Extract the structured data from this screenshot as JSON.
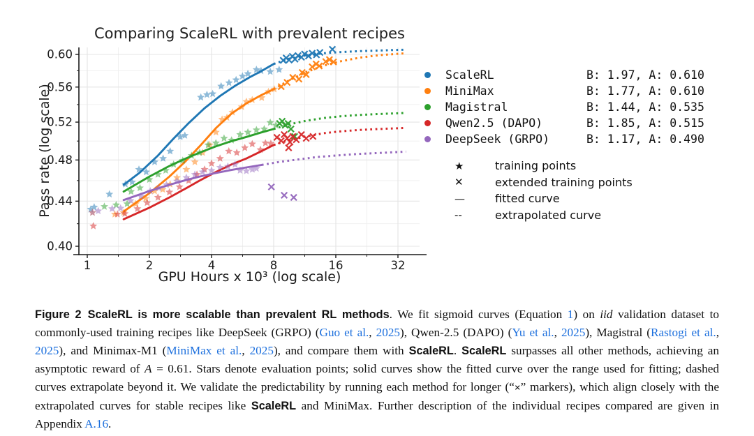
{
  "chart_data": {
    "type": "scatter+line",
    "title": "Comparing ScaleRL with prevalent recipes",
    "xlabel": "GPU Hours x 10³ (log scale)",
    "ylabel": "Pass rate (log scale)",
    "x_scale": "log2",
    "y_scale": "log",
    "x_ticks": [
      1,
      2,
      4,
      8,
      16,
      32
    ],
    "y_ticks": [
      0.4,
      0.44,
      0.48,
      0.52,
      0.56,
      0.6
    ],
    "xlim": [
      0.91,
      40
    ],
    "ylim": [
      0.393,
      0.609
    ],
    "grid": true,
    "legend_position": "right",
    "marker_legend": [
      {
        "symbol": "★",
        "label": "training points"
      },
      {
        "symbol": "✕",
        "label": "extended training points"
      },
      {
        "symbol": "—",
        "label": "fitted curve"
      },
      {
        "symbol": "--",
        "label": "extrapolated curve"
      }
    ],
    "series": [
      {
        "name": "ScaleRL",
        "color": "#1f77b4",
        "B": 1.97,
        "A": 0.61,
        "fit_label": "B: 1.97, A: 0.610",
        "solid_until": 8,
        "curve": [
          [
            1.5,
            0.4555
          ],
          [
            1.8,
            0.4675
          ],
          [
            2.2,
            0.4845
          ],
          [
            2.6,
            0.5015
          ],
          [
            3.1,
            0.519
          ],
          [
            3.7,
            0.5355
          ],
          [
            4.4,
            0.5495
          ],
          [
            5.2,
            0.5615
          ],
          [
            6.2,
            0.5725
          ],
          [
            7.0,
            0.5795
          ],
          [
            8.0,
            0.588
          ],
          [
            9.5,
            0.5945
          ],
          [
            11.5,
            0.599
          ],
          [
            14,
            0.6015
          ],
          [
            17,
            0.603
          ],
          [
            21,
            0.6042
          ],
          [
            26,
            0.605
          ],
          [
            31,
            0.6057
          ],
          [
            35,
            0.606
          ]
        ],
        "stars": [
          [
            1.04,
            0.4325
          ],
          [
            1.08,
            0.4345
          ],
          [
            1.28,
            0.4465
          ],
          [
            1.53,
            0.456
          ],
          [
            1.65,
            0.458
          ],
          [
            1.78,
            0.4705
          ],
          [
            1.93,
            0.468
          ],
          [
            2.12,
            0.478
          ],
          [
            2.33,
            0.4815
          ],
          [
            2.52,
            0.489
          ],
          [
            2.82,
            0.504
          ],
          [
            2.97,
            0.5055
          ],
          [
            3.55,
            0.548
          ],
          [
            3.8,
            0.551
          ],
          [
            4.05,
            0.552
          ],
          [
            4.45,
            0.561
          ],
          [
            4.86,
            0.565
          ],
          [
            5.26,
            0.5685
          ],
          [
            5.65,
            0.573
          ],
          [
            6.0,
            0.576
          ],
          [
            6.6,
            0.581
          ],
          [
            6.95,
            0.5795
          ],
          [
            7.7,
            0.5785
          ],
          [
            8.5,
            0.581
          ]
        ],
        "crosses": [
          [
            8.9,
            0.5925
          ],
          [
            9.2,
            0.5955
          ],
          [
            9.5,
            0.593
          ],
          [
            9.85,
            0.5975
          ],
          [
            10.15,
            0.594
          ],
          [
            10.5,
            0.5985
          ],
          [
            10.9,
            0.5965
          ],
          [
            11.3,
            0.6005
          ],
          [
            11.8,
            0.598
          ],
          [
            12.3,
            0.6015
          ],
          [
            12.9,
            0.5995
          ],
          [
            13.4,
            0.6025
          ],
          [
            15.4,
            0.6065
          ]
        ]
      },
      {
        "name": "MiniMax",
        "color": "#ff7f0e",
        "B": 1.77,
        "A": 0.61,
        "fit_label": "B: 1.77, A: 0.610",
        "solid_until": 8,
        "curve": [
          [
            1.5,
            0.4305
          ],
          [
            2.0,
            0.4475
          ],
          [
            2.5,
            0.4635
          ],
          [
            3.0,
            0.479
          ],
          [
            3.5,
            0.494
          ],
          [
            4.2,
            0.5135
          ],
          [
            5.0,
            0.5295
          ],
          [
            5.9,
            0.541
          ],
          [
            6.9,
            0.55
          ],
          [
            8.0,
            0.5575
          ],
          [
            9.5,
            0.568
          ],
          [
            11.5,
            0.578
          ],
          [
            14,
            0.586
          ],
          [
            17,
            0.5915
          ],
          [
            21,
            0.596
          ],
          [
            26,
            0.599
          ],
          [
            31,
            0.6005
          ],
          [
            35,
            0.6015
          ]
        ],
        "stars": [
          [
            1.06,
            0.4295
          ],
          [
            1.36,
            0.428
          ],
          [
            1.5,
            0.4295
          ],
          [
            1.72,
            0.4375
          ],
          [
            1.92,
            0.4425
          ],
          [
            2.12,
            0.4495
          ],
          [
            2.32,
            0.451
          ],
          [
            2.52,
            0.456
          ],
          [
            2.72,
            0.4625
          ],
          [
            3.02,
            0.4705
          ],
          [
            3.32,
            0.478
          ],
          [
            3.62,
            0.4875
          ],
          [
            3.92,
            0.4955
          ],
          [
            4.2,
            0.509
          ],
          [
            4.5,
            0.523
          ],
          [
            4.75,
            0.525
          ],
          [
            5.05,
            0.531
          ],
          [
            5.6,
            0.537
          ],
          [
            5.9,
            0.543
          ],
          [
            6.3,
            0.545
          ],
          [
            7.0,
            0.5475
          ],
          [
            7.55,
            0.5545
          ],
          [
            8.05,
            0.5575
          ]
        ],
        "crosses": [
          [
            8.7,
            0.5605
          ],
          [
            9.3,
            0.5655
          ],
          [
            9.9,
            0.5715
          ],
          [
            10.6,
            0.5695
          ],
          [
            11.0,
            0.5775
          ],
          [
            11.5,
            0.575
          ],
          [
            12.3,
            0.5845
          ],
          [
            12.85,
            0.588
          ],
          [
            13.3,
            0.5855
          ],
          [
            14.3,
            0.591
          ],
          [
            14.9,
            0.5935
          ],
          [
            15.6,
            0.5905
          ]
        ]
      },
      {
        "name": "Magistral",
        "color": "#2ca02c",
        "B": 1.44,
        "A": 0.535,
        "fit_label": "B: 1.44, A: 0.535",
        "solid_until": 8,
        "curve": [
          [
            1.5,
            0.449
          ],
          [
            2.0,
            0.4635
          ],
          [
            2.5,
            0.474
          ],
          [
            3.0,
            0.4815
          ],
          [
            3.5,
            0.4875
          ],
          [
            4.2,
            0.494
          ],
          [
            5.0,
            0.4995
          ],
          [
            5.9,
            0.504
          ],
          [
            6.9,
            0.5085
          ],
          [
            8.0,
            0.5125
          ],
          [
            9.5,
            0.5175
          ],
          [
            11.5,
            0.5215
          ],
          [
            14,
            0.5245
          ],
          [
            17,
            0.5265
          ],
          [
            21,
            0.528
          ],
          [
            26,
            0.529
          ],
          [
            31,
            0.5297
          ],
          [
            35,
            0.5302
          ]
        ],
        "stars": [
          [
            1.21,
            0.435
          ],
          [
            1.38,
            0.4365
          ],
          [
            1.56,
            0.4375
          ],
          [
            1.63,
            0.449
          ],
          [
            1.8,
            0.4525
          ],
          [
            2.0,
            0.4605
          ],
          [
            2.2,
            0.4655
          ],
          [
            2.4,
            0.4695
          ],
          [
            2.62,
            0.4755
          ],
          [
            2.9,
            0.4795
          ],
          [
            3.2,
            0.4845
          ],
          [
            3.5,
            0.4875
          ],
          [
            3.85,
            0.4955
          ],
          [
            4.2,
            0.4975
          ],
          [
            4.6,
            0.5025
          ],
          [
            5.0,
            0.5005
          ],
          [
            5.5,
            0.5065
          ],
          [
            6.0,
            0.509
          ],
          [
            6.6,
            0.5115
          ],
          [
            7.2,
            0.5125
          ],
          [
            7.7,
            0.5195
          ],
          [
            8.2,
            0.5165
          ]
        ],
        "crosses": [
          [
            8.55,
            0.5185
          ],
          [
            8.8,
            0.521
          ],
          [
            9.1,
            0.5165
          ],
          [
            9.4,
            0.5185
          ],
          [
            9.7,
            0.5125
          ],
          [
            10.1,
            0.5045
          ]
        ]
      },
      {
        "name": "Qwen2.5 (DAPO)",
        "color": "#d62728",
        "B": 1.85,
        "A": 0.515,
        "fit_label": "B: 1.85, A: 0.515",
        "solid_until": 8,
        "curve": [
          [
            1.5,
            0.4235
          ],
          [
            2.0,
            0.434
          ],
          [
            2.5,
            0.4435
          ],
          [
            3.0,
            0.452
          ],
          [
            3.5,
            0.4595
          ],
          [
            4.2,
            0.468
          ],
          [
            5.0,
            0.4755
          ],
          [
            5.9,
            0.4815
          ],
          [
            6.9,
            0.4885
          ],
          [
            8.0,
            0.4955
          ],
          [
            9.5,
            0.5005
          ],
          [
            11.5,
            0.5045
          ],
          [
            14,
            0.508
          ],
          [
            17,
            0.51
          ],
          [
            21,
            0.5115
          ],
          [
            26,
            0.5125
          ],
          [
            31,
            0.5132
          ],
          [
            35,
            0.5137
          ]
        ],
        "stars": [
          [
            1.07,
            0.4175
          ],
          [
            1.4,
            0.428
          ],
          [
            1.52,
            0.4285
          ],
          [
            1.75,
            0.433
          ],
          [
            1.95,
            0.4385
          ],
          [
            2.2,
            0.4435
          ],
          [
            2.5,
            0.4485
          ],
          [
            2.8,
            0.4535
          ],
          [
            3.1,
            0.4595
          ],
          [
            3.4,
            0.4655
          ],
          [
            3.7,
            0.4705
          ],
          [
            4.0,
            0.4765
          ],
          [
            4.4,
            0.4815
          ],
          [
            4.85,
            0.489
          ],
          [
            5.3,
            0.4875
          ],
          [
            5.8,
            0.4925
          ],
          [
            6.3,
            0.4965
          ],
          [
            6.9,
            0.4905
          ],
          [
            7.3,
            0.4975
          ],
          [
            7.75,
            0.497
          ]
        ],
        "crosses": [
          [
            8.3,
            0.5035
          ],
          [
            8.7,
            0.5
          ],
          [
            9.0,
            0.5065
          ],
          [
            9.3,
            0.5025
          ],
          [
            9.45,
            0.4925
          ],
          [
            9.6,
            0.4985
          ],
          [
            9.9,
            0.5045
          ],
          [
            10.3,
            0.501
          ],
          [
            10.9,
            0.5065
          ],
          [
            11.5,
            0.5025
          ],
          [
            12.4,
            0.5045
          ]
        ]
      },
      {
        "name": "DeepSeek (GRPO)",
        "color": "#9467bd",
        "B": 1.17,
        "A": 0.49,
        "fit_label": "B: 1.17, A: 0.490",
        "solid_until": 7,
        "curve": [
          [
            1.5,
            0.441
          ],
          [
            2.0,
            0.4495
          ],
          [
            2.5,
            0.4555
          ],
          [
            3.0,
            0.46
          ],
          [
            3.5,
            0.4635
          ],
          [
            4.2,
            0.467
          ],
          [
            5.0,
            0.47
          ],
          [
            5.9,
            0.4725
          ],
          [
            7.0,
            0.475
          ],
          [
            8.5,
            0.478
          ],
          [
            10.5,
            0.4805
          ],
          [
            13,
            0.483
          ],
          [
            16,
            0.4845
          ],
          [
            20,
            0.486
          ],
          [
            25,
            0.487
          ],
          [
            30,
            0.4878
          ],
          [
            35,
            0.4885
          ]
        ],
        "stars": [
          [
            1.06,
            0.4295
          ],
          [
            1.13,
            0.431
          ],
          [
            1.32,
            0.433
          ],
          [
            1.45,
            0.4335
          ],
          [
            1.62,
            0.4405
          ],
          [
            1.82,
            0.4445
          ],
          [
            2.02,
            0.4495
          ],
          [
            2.22,
            0.4525
          ],
          [
            2.42,
            0.4555
          ],
          [
            2.72,
            0.459
          ],
          [
            3.02,
            0.4625
          ],
          [
            3.32,
            0.4655
          ],
          [
            3.62,
            0.468
          ],
          [
            4.0,
            0.4695
          ],
          [
            4.4,
            0.4725
          ],
          [
            4.8,
            0.4735
          ],
          [
            5.2,
            0.4755
          ],
          [
            5.5,
            0.4695
          ],
          [
            5.9,
            0.469
          ],
          [
            6.3,
            0.4705
          ],
          [
            6.6,
            0.4715
          ]
        ],
        "crosses": [
          [
            7.8,
            0.4535
          ],
          [
            9.0,
            0.4455
          ],
          [
            10.0,
            0.4435
          ]
        ]
      }
    ]
  },
  "caption": {
    "link_color": "#1c6fdd",
    "segments": [
      {
        "c": "fig",
        "t": "Figure 2"
      },
      {
        "c": "bold",
        "t": "ScaleRL is more scalable than prevalent RL methods"
      },
      {
        "c": "serif",
        "t": ". We fit sigmoid curves (Equation "
      },
      {
        "c": "link",
        "t": "1"
      },
      {
        "c": "serif",
        "t": ") on "
      },
      {
        "c": "it",
        "t": "iid"
      },
      {
        "c": "serif",
        "t": " validation dataset to commonly-used training recipes like DeepSeek (GRPO) ("
      },
      {
        "c": "link",
        "t": "Guo et al."
      },
      {
        "c": "serif",
        "t": ", "
      },
      {
        "c": "link",
        "t": "2025"
      },
      {
        "c": "serif",
        "t": "), Qwen-2.5 (DAPO) ("
      },
      {
        "c": "link",
        "t": "Yu et al."
      },
      {
        "c": "serif",
        "t": ", "
      },
      {
        "c": "link",
        "t": "2025"
      },
      {
        "c": "serif",
        "t": "), Magistral ("
      },
      {
        "c": "link",
        "t": "Rastogi et al."
      },
      {
        "c": "serif",
        "t": ", "
      },
      {
        "c": "link",
        "t": "2025"
      },
      {
        "c": "serif",
        "t": "), and Minimax-M1 ("
      },
      {
        "c": "link",
        "t": "MiniMax et al."
      },
      {
        "c": "serif",
        "t": ", "
      },
      {
        "c": "link",
        "t": "2025"
      },
      {
        "c": "serif",
        "t": "), and compare them with "
      },
      {
        "c": "bold",
        "t": "ScaleRL"
      },
      {
        "c": "serif",
        "t": ". "
      },
      {
        "c": "bold",
        "t": "ScaleRL"
      },
      {
        "c": "serif",
        "t": " surpasses all other methods, achieving an asymptotic reward of "
      },
      {
        "c": "it",
        "t": "A"
      },
      {
        "c": "serif",
        "t": " = 0.61. Stars denote evaluation points; solid curves show the fitted curve over the range used for fitting; dashed curves extrapolate beyond it. We validate the predictability by running each method for longer (“"
      },
      {
        "c": "x",
        "t": "×"
      },
      {
        "c": "serif",
        "t": "” markers), which align closely with the extrapolated curves for stable recipes like "
      },
      {
        "c": "bold",
        "t": "ScaleRL"
      },
      {
        "c": "serif",
        "t": " and MiniMax. Further description of the individual recipes compared are given in Appendix "
      },
      {
        "c": "link",
        "t": "A.16"
      },
      {
        "c": "serif",
        "t": "."
      }
    ]
  }
}
